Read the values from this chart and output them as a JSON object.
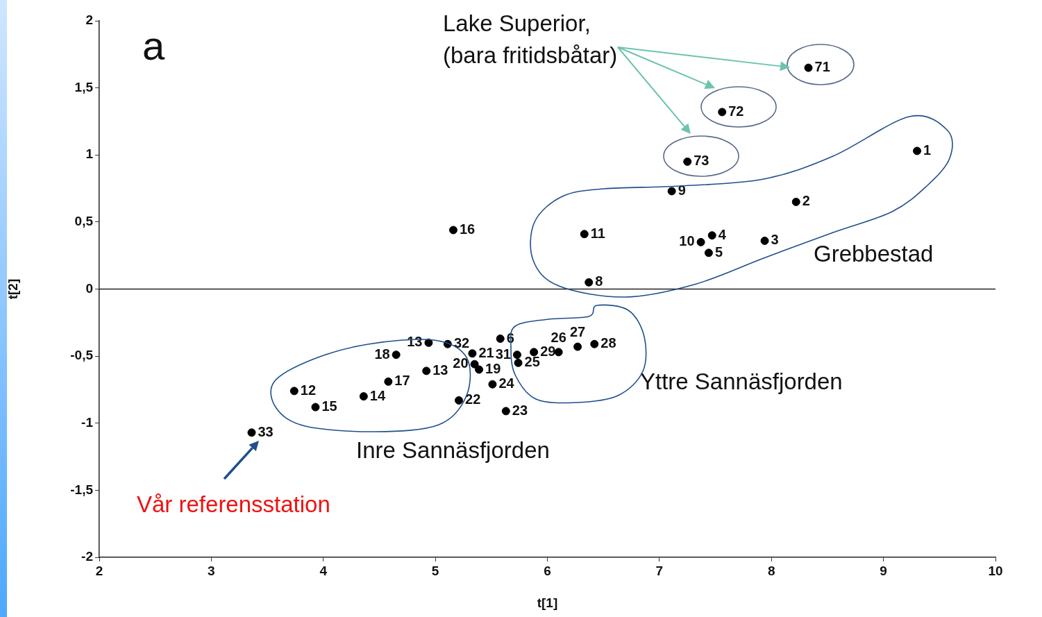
{
  "chart_data": {
    "type": "scatter",
    "xlabel": "t[1]",
    "ylabel": "t[2]",
    "x": [
      8.33,
      7.56,
      7.25,
      9.3,
      7.11,
      8.22,
      5.16,
      6.33,
      7.47,
      7.37,
      7.94,
      7.44,
      6.37,
      4.94,
      5.11,
      5.58,
      5.33,
      4.65,
      5.73,
      5.88,
      6.1,
      6.27,
      6.42,
      4.92,
      5.35,
      5.39,
      5.51,
      5.74,
      4.58,
      3.74,
      4.36,
      3.93,
      5.21,
      5.63,
      3.36
    ],
    "series": [
      {
        "color": "#000000",
        "values": [
          1.65,
          1.32,
          0.95,
          1.03,
          0.73,
          0.65,
          0.44,
          0.41,
          0.4,
          0.35,
          0.36,
          0.27,
          0.05,
          -0.4,
          -0.41,
          -0.37,
          -0.48,
          -0.49,
          -0.49,
          -0.47,
          -0.47,
          -0.43,
          -0.41,
          -0.61,
          -0.56,
          -0.6,
          -0.71,
          -0.55,
          -0.69,
          -0.76,
          -0.8,
          -0.88,
          -0.83,
          -0.91,
          -1.07
        ]
      }
    ],
    "marker": "circle",
    "grid": false,
    "legend": false,
    "xlim": [
      2,
      10
    ],
    "xticks": [
      2,
      3,
      4,
      5,
      6,
      7,
      8,
      9,
      10
    ],
    "ylim": [
      -2,
      2
    ],
    "yticks": [
      {
        "value": -2,
        "label": "-2"
      },
      {
        "value": -1.5,
        "label": "-1,5"
      },
      {
        "value": -1,
        "label": "-1"
      },
      {
        "value": -0.5,
        "label": "-0,5"
      },
      {
        "value": 0,
        "label": "0"
      },
      {
        "value": 0.5,
        "label": "0,5"
      },
      {
        "value": 1,
        "label": "1"
      },
      {
        "value": 1.5,
        "label": "1,5"
      },
      {
        "value": 2,
        "label": "2"
      }
    ],
    "ref_lines": [
      {
        "axis": "y",
        "value": 0
      }
    ],
    "annotations": [
      {
        "text": "71",
        "x": 8.33,
        "y": 1.65
      },
      {
        "text": "72",
        "x": 7.56,
        "y": 1.32
      },
      {
        "text": "73",
        "x": 7.25,
        "y": 0.95
      },
      {
        "text": "1",
        "x": 9.3,
        "y": 1.03
      },
      {
        "text": "9",
        "x": 7.11,
        "y": 0.73
      },
      {
        "text": "2",
        "x": 8.22,
        "y": 0.65
      },
      {
        "text": "16",
        "x": 5.16,
        "y": 0.44
      },
      {
        "text": "11",
        "x": 6.33,
        "y": 0.41
      },
      {
        "text": "4",
        "x": 7.47,
        "y": 0.4
      },
      {
        "text": "10",
        "x": 7.37,
        "y": 0.35
      },
      {
        "text": "3",
        "x": 7.94,
        "y": 0.36
      },
      {
        "text": "5",
        "x": 7.44,
        "y": 0.27
      },
      {
        "text": "8",
        "x": 6.37,
        "y": 0.05
      },
      {
        "text": "13",
        "x": 4.94,
        "y": -0.4
      },
      {
        "text": "32",
        "x": 5.11,
        "y": -0.41
      },
      {
        "text": "6",
        "x": 5.58,
        "y": -0.37
      },
      {
        "text": "21",
        "x": 5.33,
        "y": -0.48
      },
      {
        "text": "18",
        "x": 4.65,
        "y": -0.49
      },
      {
        "text": "31",
        "x": 5.73,
        "y": -0.49
      },
      {
        "text": "29",
        "x": 5.88,
        "y": -0.47
      },
      {
        "text": "26",
        "x": 6.1,
        "y": -0.47
      },
      {
        "text": "27",
        "x": 6.27,
        "y": -0.43
      },
      {
        "text": "28",
        "x": 6.42,
        "y": -0.41
      },
      {
        "text": "13",
        "x": 4.92,
        "y": -0.61
      },
      {
        "text": "20",
        "x": 5.35,
        "y": -0.56
      },
      {
        "text": "19",
        "x": 5.39,
        "y": -0.6
      },
      {
        "text": "24",
        "x": 5.51,
        "y": -0.71
      },
      {
        "text": "25",
        "x": 5.74,
        "y": -0.55
      },
      {
        "text": "17",
        "x": 4.58,
        "y": -0.69
      },
      {
        "text": "12",
        "x": 3.74,
        "y": -0.76
      },
      {
        "text": "14",
        "x": 4.36,
        "y": -0.8
      },
      {
        "text": "15",
        "x": 3.93,
        "y": -0.88
      },
      {
        "text": "22",
        "x": 5.21,
        "y": -0.83
      },
      {
        "text": "23",
        "x": 5.63,
        "y": -0.91
      },
      {
        "text": "33",
        "x": 3.36,
        "y": -1.07
      },
      "a",
      "Lake Superior,",
      "(bara fritidsbåtar)",
      "Grebbestad",
      "Yttre Sannäsfjorden",
      "Inre Sannäsfjorden",
      "Vår referensstation"
    ]
  }
}
